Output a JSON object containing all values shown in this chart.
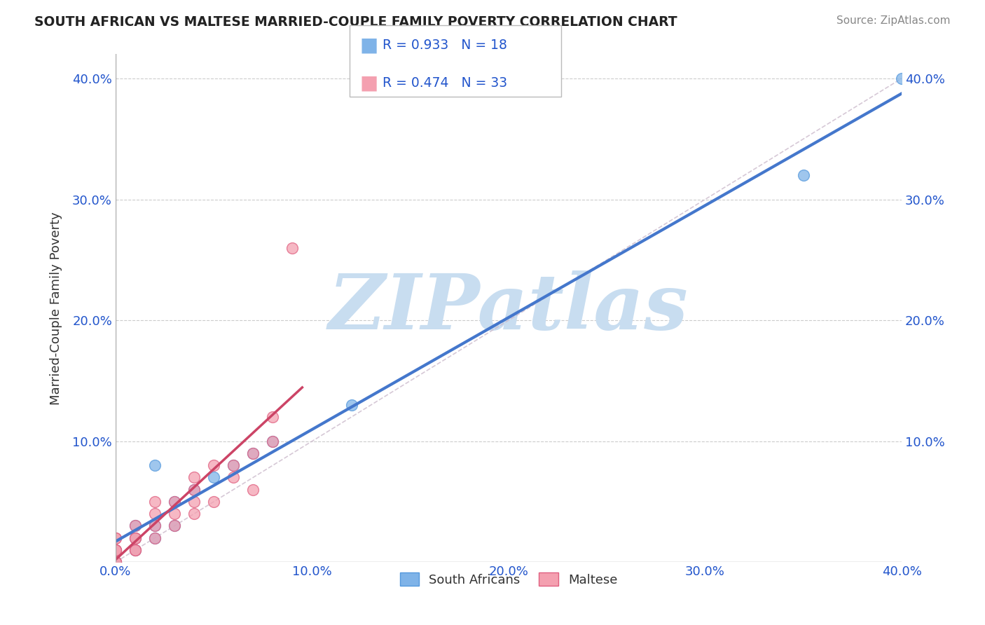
{
  "title": "SOUTH AFRICAN VS MALTESE MARRIED-COUPLE FAMILY POVERTY CORRELATION CHART",
  "source": "Source: ZipAtlas.com",
  "ylabel": "Married-Couple Family Poverty",
  "xlim": [
    0.0,
    0.4
  ],
  "ylim": [
    0.0,
    0.42
  ],
  "xticks": [
    0.0,
    0.1,
    0.2,
    0.3,
    0.4
  ],
  "xtick_labels": [
    "0.0%",
    "10.0%",
    "20.0%",
    "30.0%",
    "40.0%"
  ],
  "yticks": [
    0.0,
    0.1,
    0.2,
    0.3,
    0.4
  ],
  "ytick_labels": [
    "",
    "10.0%",
    "20.0%",
    "30.0%",
    "40.0%"
  ],
  "background_color": "#ffffff",
  "grid_color": "#cccccc",
  "watermark": "ZIPatlas",
  "watermark_color": "#c8ddf0",
  "legend_r1": "R = 0.933",
  "legend_n1": "N = 18",
  "legend_r2": "R = 0.474",
  "legend_n2": "N = 33",
  "legend_color": "#2255cc",
  "sa_color": "#7fb3e8",
  "sa_edge_color": "#5599dd",
  "maltese_color": "#f4a0b0",
  "maltese_edge_color": "#e06080",
  "sa_line_color": "#4477cc",
  "maltese_line_color": "#cc4466",
  "ref_line_color": "#ccbbcc",
  "south_african_points_x": [
    0.0,
    0.0,
    0.01,
    0.01,
    0.01,
    0.02,
    0.02,
    0.02,
    0.03,
    0.03,
    0.04,
    0.05,
    0.06,
    0.07,
    0.08,
    0.12,
    0.35,
    0.4
  ],
  "south_african_points_y": [
    0.0,
    0.01,
    0.01,
    0.02,
    0.03,
    0.02,
    0.03,
    0.08,
    0.03,
    0.05,
    0.06,
    0.07,
    0.08,
    0.09,
    0.1,
    0.13,
    0.32,
    0.4
  ],
  "maltese_points_x": [
    0.0,
    0.0,
    0.0,
    0.0,
    0.0,
    0.0,
    0.0,
    0.0,
    0.01,
    0.01,
    0.01,
    0.01,
    0.01,
    0.02,
    0.02,
    0.02,
    0.02,
    0.03,
    0.03,
    0.03,
    0.04,
    0.04,
    0.04,
    0.04,
    0.05,
    0.05,
    0.06,
    0.06,
    0.07,
    0.07,
    0.08,
    0.08,
    0.09
  ],
  "maltese_points_y": [
    0.0,
    0.0,
    0.0,
    0.01,
    0.01,
    0.01,
    0.02,
    0.02,
    0.01,
    0.01,
    0.02,
    0.02,
    0.03,
    0.02,
    0.03,
    0.04,
    0.05,
    0.03,
    0.04,
    0.05,
    0.04,
    0.05,
    0.06,
    0.07,
    0.05,
    0.08,
    0.07,
    0.08,
    0.06,
    0.09,
    0.1,
    0.12,
    0.26
  ]
}
